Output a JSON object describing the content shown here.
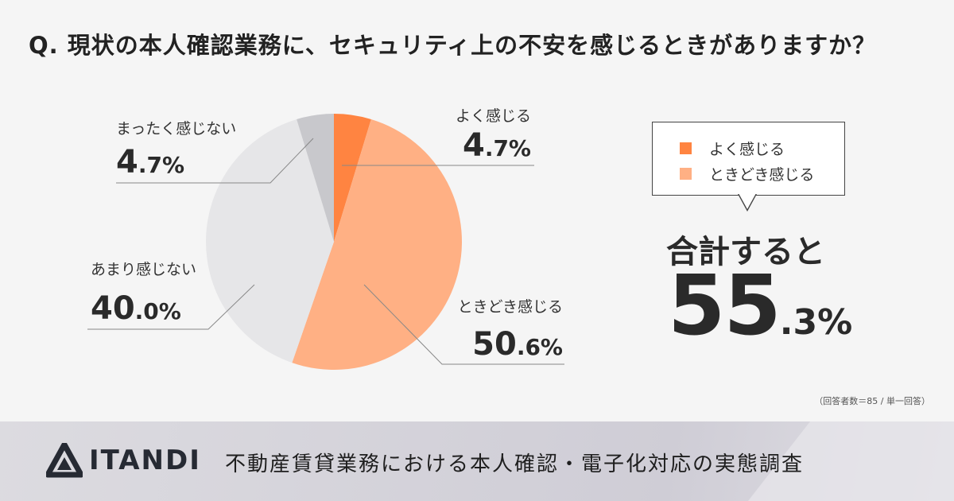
{
  "question": "Q.  現状の本人確認業務に、セキュリティ上の不安を感じるときがありますか？",
  "chart_data": {
    "type": "pie",
    "title": "Q.  現状の本人確認業務に、セキュリティ上の不安を感じるときがありますか？",
    "slices": [
      {
        "label": "よく感じる",
        "value": 4.7,
        "int": "4",
        "dec": ".7%",
        "color": "#ff8441"
      },
      {
        "label": "ときどき感じる",
        "value": 50.6,
        "int": "50",
        "dec": ".6%",
        "color": "#ffb084"
      },
      {
        "label": "あまり感じない",
        "value": 40.0,
        "int": "40",
        "dec": ".0%",
        "color": "#e6e6e8"
      },
      {
        "label": "まったく感じない",
        "value": 4.7,
        "int": "4",
        "dec": ".7%",
        "color": "#c8c8cc"
      }
    ],
    "start": "12 o'clock, clockwise",
    "legend": {
      "placement": "right",
      "entries": [
        {
          "label": "よく感じる",
          "color": "#ff8441"
        },
        {
          "label": "ときどき感じる",
          "color": "#ffb084"
        }
      ]
    }
  },
  "total": {
    "label": "合計すると",
    "value": 55.3,
    "int": "55",
    "dec": ".3%"
  },
  "note": "（回答者数＝85 / 単一回答）",
  "footer": {
    "brand": "ITANDI",
    "title": "不動産賃貸業務における本人確認・電子化対応の実態調査"
  }
}
